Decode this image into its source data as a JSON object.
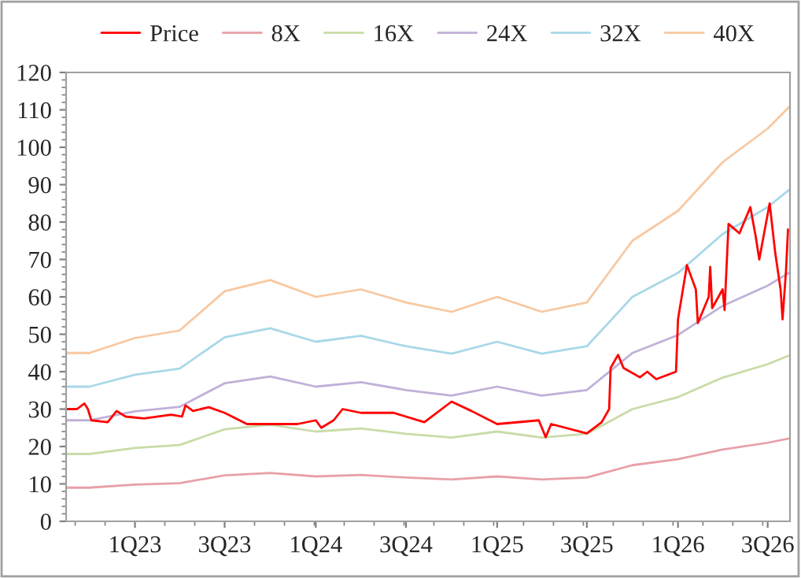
{
  "chart_data": {
    "type": "line",
    "xlim": [
      "2022-08-15",
      "2026-08-15"
    ],
    "xticks": [
      {
        "value": "2023-01-01",
        "label": "1Q23"
      },
      {
        "value": "2023-07-01",
        "label": "3Q23"
      },
      {
        "value": "2024-01-01",
        "label": "1Q24"
      },
      {
        "value": "2024-07-01",
        "label": "3Q24"
      },
      {
        "value": "2025-01-01",
        "label": "1Q25"
      },
      {
        "value": "2025-07-01",
        "label": "3Q25"
      },
      {
        "value": "2026-01-01",
        "label": "1Q26"
      },
      {
        "value": "2026-07-01",
        "label": "3Q26"
      }
    ],
    "ylim": [
      0,
      120
    ],
    "yticks": [
      0,
      10,
      20,
      30,
      40,
      50,
      60,
      70,
      80,
      90,
      100,
      110,
      120
    ],
    "grid": false,
    "legend": "top",
    "marker": "none",
    "line_style": "solid",
    "series": [
      {
        "name": "Price",
        "color": "#ff0000",
        "x": [
          "2022-08-15",
          "2022-09-06",
          "2022-09-21",
          "2022-09-28",
          "2022-10-05",
          "2022-11-07",
          "2022-11-25",
          "2022-12-13",
          "2023-01-19",
          "2023-03-15",
          "2023-04-06",
          "2023-04-13",
          "2023-04-28",
          "2023-05-30",
          "2023-07-01",
          "2023-08-15",
          "2023-11-25",
          "2024-01-01",
          "2024-01-12",
          "2024-02-06",
          "2024-02-24",
          "2024-04-01",
          "2024-06-06",
          "2024-08-07",
          "2024-10-01",
          "2024-11-10",
          "2025-01-01",
          "2025-03-26",
          "2025-04-09",
          "2025-04-20",
          "2025-07-01",
          "2025-07-31",
          "2025-08-15",
          "2025-08-18",
          "2025-09-02",
          "2025-09-13",
          "2025-10-16",
          "2025-10-31",
          "2025-11-18",
          "2025-12-28",
          "2026-01-01",
          "2026-01-19",
          "2026-02-06",
          "2026-02-10",
          "2026-03-04",
          "2026-03-07",
          "2026-03-11",
          "2026-04-01",
          "2026-04-05",
          "2026-04-13",
          "2026-05-05",
          "2026-05-27",
          "2026-06-07",
          "2026-06-14",
          "2026-07-05",
          "2026-07-16",
          "2026-07-27",
          "2026-07-31",
          "2026-08-07",
          "2026-08-11"
        ],
        "values": [
          30,
          30,
          31.5,
          30,
          27,
          26.5,
          29.5,
          28,
          27.5,
          28.5,
          28,
          31,
          29.5,
          30.5,
          29,
          26,
          26,
          27,
          25,
          27,
          30,
          29,
          29,
          26.5,
          32,
          29.5,
          26,
          27,
          22.5,
          26,
          23.5,
          26.5,
          30,
          41,
          44.5,
          41,
          38.5,
          40,
          38,
          40,
          54,
          68.5,
          62,
          53,
          60,
          68,
          57,
          62,
          56.5,
          79.5,
          77,
          84,
          76,
          70,
          85,
          72,
          62,
          54,
          67,
          78
        ]
      },
      {
        "name": "8X",
        "color": "#e8a0a8",
        "values": [
          9,
          9,
          9.8,
          10.2,
          12.3,
          12.9,
          12,
          12.4,
          11.7,
          11.2,
          12,
          11.2,
          11.7,
          15,
          16.6,
          19.2,
          21,
          22.2
        ]
      },
      {
        "name": "16X",
        "color": "#c8dca8",
        "values": [
          18,
          18,
          19.6,
          20.4,
          24.6,
          25.8,
          24,
          24.8,
          23.4,
          22.4,
          24,
          22.4,
          23.4,
          30,
          33.2,
          38.4,
          42,
          44.4
        ]
      },
      {
        "name": "24X",
        "color": "#c0b0d8",
        "values": [
          27,
          27,
          29.4,
          30.6,
          36.9,
          38.7,
          36,
          37.2,
          35.1,
          33.6,
          36,
          33.6,
          35.1,
          45,
          49.8,
          57.6,
          63,
          66.6
        ]
      },
      {
        "name": "32X",
        "color": "#a8d8e8",
        "values": [
          36,
          36,
          39.2,
          40.8,
          49.2,
          51.6,
          48,
          49.6,
          46.8,
          44.8,
          48,
          44.8,
          46.8,
          60,
          66.4,
          76.8,
          84,
          88.8
        ]
      },
      {
        "name": "40X",
        "color": "#f8c8a0",
        "values": [
          45,
          45,
          49,
          51,
          61.5,
          64.5,
          60,
          62,
          58.5,
          56,
          60,
          56,
          58.5,
          75,
          83,
          96,
          105,
          111
        ]
      }
    ],
    "x": [
      "2022-08-15",
      "2022-10-01",
      "2023-01-01",
      "2023-04-01",
      "2023-07-01",
      "2023-10-01",
      "2024-01-01",
      "2024-04-01",
      "2024-07-01",
      "2024-10-01",
      "2025-01-01",
      "2025-04-01",
      "2025-07-01",
      "2025-10-01",
      "2026-01-01",
      "2026-04-01",
      "2026-07-01",
      "2026-08-15"
    ]
  }
}
